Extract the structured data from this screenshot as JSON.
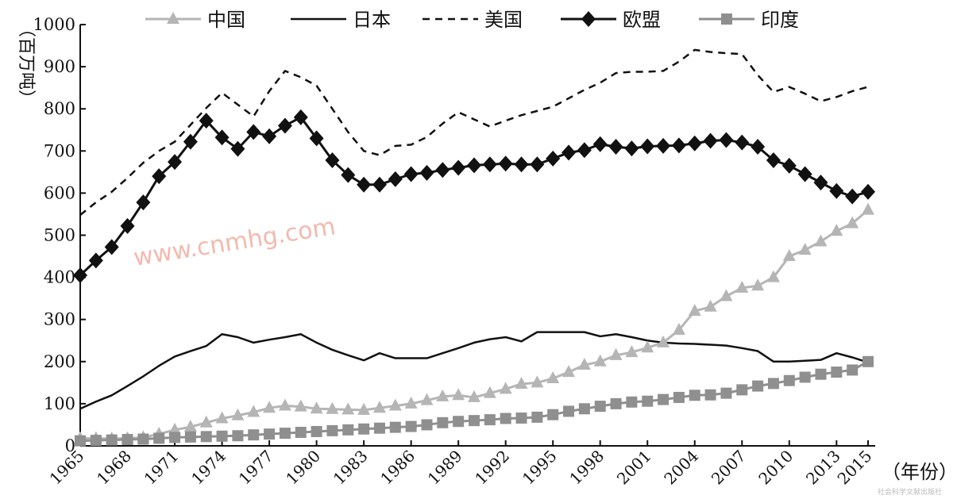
{
  "chart_data": {
    "type": "line",
    "ylabel": "（百万吨）",
    "xlabel": "（年份）",
    "ylim": [
      0,
      1000
    ],
    "xlim": [
      1965,
      2015
    ],
    "yticks": [
      0,
      100,
      200,
      300,
      400,
      500,
      600,
      700,
      800,
      900,
      1000
    ],
    "xticks": [
      1965,
      1968,
      1971,
      1974,
      1977,
      1980,
      1983,
      1986,
      1989,
      1992,
      1995,
      1998,
      2001,
      2004,
      2007,
      2010,
      2013,
      2015
    ],
    "legend_position": "top",
    "grid": false,
    "x": [
      1965,
      1966,
      1967,
      1968,
      1969,
      1970,
      1971,
      1972,
      1973,
      1974,
      1975,
      1976,
      1977,
      1978,
      1979,
      1980,
      1981,
      1982,
      1983,
      1984,
      1985,
      1986,
      1987,
      1988,
      1989,
      1990,
      1991,
      1992,
      1993,
      1994,
      1995,
      1996,
      1997,
      1998,
      1999,
      2000,
      2001,
      2002,
      2003,
      2004,
      2005,
      2006,
      2007,
      2008,
      2009,
      2010,
      2011,
      2012,
      2013,
      2014,
      2015
    ],
    "series": [
      {
        "name": "中国",
        "color": "#b5b5b5",
        "marker": "triangle",
        "dash": "",
        "values": [
          18,
          18,
          17,
          18,
          20,
          28,
          38,
          45,
          55,
          65,
          72,
          80,
          90,
          95,
          93,
          88,
          87,
          86,
          85,
          90,
          95,
          100,
          108,
          117,
          120,
          115,
          125,
          135,
          147,
          150,
          160,
          175,
          192,
          200,
          215,
          222,
          233,
          245,
          275,
          320,
          330,
          355,
          375,
          380,
          400,
          450,
          465,
          485,
          510,
          528,
          560
        ]
      },
      {
        "name": "日本",
        "color": "#111111",
        "marker": "none",
        "dash": "",
        "values": [
          88,
          105,
          120,
          142,
          165,
          190,
          212,
          225,
          237,
          265,
          258,
          245,
          252,
          258,
          265,
          245,
          228,
          215,
          203,
          220,
          208,
          208,
          208,
          220,
          232,
          245,
          253,
          258,
          248,
          270,
          270,
          270,
          270,
          260,
          265,
          258,
          250,
          245,
          243,
          242,
          240,
          238,
          232,
          225,
          200,
          200,
          202,
          204,
          220,
          210,
          198
        ]
      },
      {
        "name": "美国",
        "color": "#111111",
        "marker": "none",
        "dash": "9,7",
        "values": [
          548,
          578,
          603,
          636,
          672,
          700,
          722,
          762,
          802,
          838,
          810,
          782,
          842,
          890,
          875,
          855,
          800,
          745,
          700,
          690,
          712,
          715,
          733,
          765,
          792,
          775,
          758,
          772,
          785,
          795,
          805,
          825,
          845,
          862,
          885,
          888,
          888,
          890,
          912,
          940,
          935,
          932,
          930,
          880,
          840,
          852,
          836,
          818,
          828,
          842,
          852
        ]
      },
      {
        "name": "欧盟",
        "color": "#111111",
        "marker": "diamond",
        "dash": "",
        "values": [
          405,
          440,
          472,
          522,
          578,
          640,
          674,
          722,
          772,
          732,
          705,
          745,
          735,
          760,
          780,
          730,
          678,
          643,
          620,
          620,
          633,
          645,
          648,
          655,
          660,
          666,
          668,
          670,
          668,
          668,
          682,
          696,
          702,
          716,
          710,
          706,
          711,
          712,
          713,
          718,
          724,
          726,
          720,
          710,
          678,
          665,
          645,
          625,
          605,
          592,
          603
        ]
      },
      {
        "name": "印度",
        "color": "#8f8f8f",
        "marker": "square",
        "dash": "",
        "values": [
          12,
          13,
          14,
          15,
          16,
          18,
          20,
          21,
          22,
          23,
          24,
          26,
          28,
          30,
          32,
          34,
          36,
          38,
          40,
          42,
          44,
          46,
          50,
          55,
          58,
          60,
          62,
          65,
          66,
          68,
          74,
          82,
          88,
          94,
          100,
          104,
          106,
          110,
          115,
          120,
          121,
          125,
          133,
          142,
          148,
          155,
          163,
          170,
          175,
          180,
          200
        ]
      }
    ]
  },
  "watermark": "www.cnmhg.com",
  "credit": "社会科学文献出版社"
}
